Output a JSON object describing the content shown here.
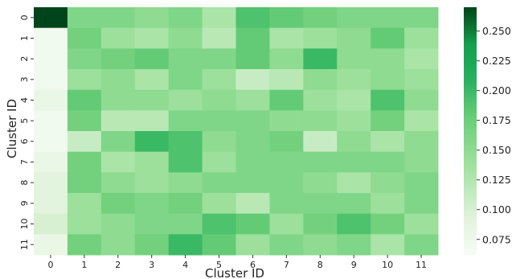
{
  "chart_data": {
    "type": "heatmap",
    "xlabel": "Cluster ID",
    "ylabel": "Cluster ID",
    "x_categories": [
      "0",
      "1",
      "2",
      "3",
      "4",
      "5",
      "6",
      "7",
      "8",
      "9",
      "10",
      "11"
    ],
    "y_categories": [
      "0",
      "1",
      "2",
      "3",
      "4",
      "5",
      "6",
      "7",
      "8",
      "9",
      "10",
      "11"
    ],
    "colormap": "Greens",
    "colorbar": {
      "vmin": 0.062,
      "vmax": 0.27,
      "ticks": [
        0.075,
        0.1,
        0.125,
        0.15,
        0.175,
        0.2,
        0.225,
        0.25
      ],
      "tick_labels": [
        "0.075",
        "0.100",
        "0.125",
        "0.150",
        "0.175",
        "0.200",
        "0.225",
        "0.250"
      ]
    },
    "values": [
      [
        0.27,
        0.16,
        0.16,
        0.15,
        0.16,
        0.13,
        0.19,
        0.18,
        0.17,
        0.16,
        0.16,
        0.16
      ],
      [
        0.07,
        0.17,
        0.14,
        0.13,
        0.15,
        0.12,
        0.18,
        0.13,
        0.14,
        0.15,
        0.18,
        0.14
      ],
      [
        0.07,
        0.16,
        0.17,
        0.18,
        0.16,
        0.16,
        0.18,
        0.15,
        0.2,
        0.15,
        0.15,
        0.13
      ],
      [
        0.07,
        0.14,
        0.15,
        0.13,
        0.16,
        0.14,
        0.11,
        0.12,
        0.15,
        0.14,
        0.15,
        0.14
      ],
      [
        0.08,
        0.18,
        0.15,
        0.15,
        0.14,
        0.15,
        0.14,
        0.18,
        0.14,
        0.13,
        0.19,
        0.15
      ],
      [
        0.07,
        0.17,
        0.12,
        0.12,
        0.16,
        0.16,
        0.16,
        0.15,
        0.15,
        0.14,
        0.17,
        0.13
      ],
      [
        0.07,
        0.11,
        0.16,
        0.2,
        0.19,
        0.15,
        0.16,
        0.17,
        0.11,
        0.15,
        0.13,
        0.15
      ],
      [
        0.08,
        0.17,
        0.13,
        0.14,
        0.19,
        0.14,
        0.16,
        0.16,
        0.16,
        0.16,
        0.16,
        0.15
      ],
      [
        0.09,
        0.17,
        0.15,
        0.14,
        0.15,
        0.16,
        0.16,
        0.16,
        0.15,
        0.13,
        0.15,
        0.16
      ],
      [
        0.09,
        0.14,
        0.17,
        0.16,
        0.17,
        0.14,
        0.12,
        0.16,
        0.16,
        0.16,
        0.14,
        0.16
      ],
      [
        0.1,
        0.14,
        0.15,
        0.16,
        0.16,
        0.19,
        0.18,
        0.14,
        0.17,
        0.19,
        0.17,
        0.14
      ],
      [
        0.08,
        0.17,
        0.15,
        0.17,
        0.2,
        0.18,
        0.14,
        0.16,
        0.15,
        0.16,
        0.13,
        0.16
      ]
    ]
  }
}
